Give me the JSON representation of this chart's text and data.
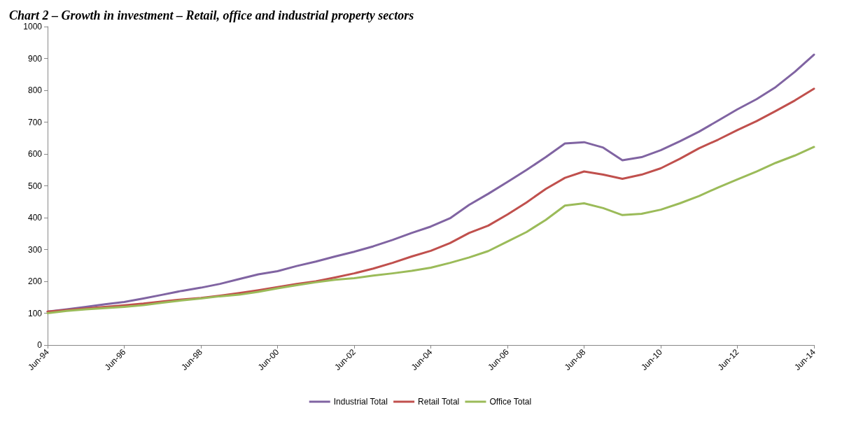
{
  "chart_data": {
    "type": "line",
    "title": "Chart 2 – Growth in investment – Retail, office and industrial property sectors",
    "categories": [
      "Jun-94",
      null,
      null,
      null,
      "Jun-96",
      null,
      null,
      null,
      "Jun-98",
      null,
      null,
      null,
      "Jun-00",
      null,
      null,
      null,
      "Jun-02",
      null,
      null,
      null,
      "Jun-04",
      null,
      null,
      null,
      "Jun-06",
      null,
      null,
      null,
      "Jun-08",
      null,
      null,
      null,
      "Jun-10",
      null,
      null,
      null,
      "Jun-12",
      null,
      null,
      null,
      "Jun-14"
    ],
    "series": [
      {
        "name": "Industrial Total",
        "color": "#8064a2",
        "values": [
          105,
          112,
          120,
          128,
          135,
          146,
          158,
          170,
          180,
          192,
          207,
          222,
          232,
          248,
          262,
          278,
          293,
          310,
          330,
          352,
          372,
          398,
          440,
          475,
          512,
          550,
          590,
          633,
          637,
          620,
          580,
          590,
          612,
          640,
          670,
          705,
          740,
          772,
          810,
          858,
          912
        ]
      },
      {
        "name": "Retail Total",
        "color": "#c0504d",
        "values": [
          105,
          110,
          115,
          120,
          125,
          130,
          137,
          143,
          148,
          155,
          163,
          172,
          182,
          192,
          200,
          212,
          225,
          240,
          258,
          278,
          296,
          320,
          352,
          375,
          410,
          448,
          490,
          525,
          545,
          535,
          522,
          535,
          555,
          585,
          618,
          645,
          675,
          703,
          735,
          768,
          805
        ]
      },
      {
        "name": "Office Total",
        "color": "#9bbb59",
        "values": [
          100,
          107,
          112,
          116,
          120,
          125,
          133,
          140,
          146,
          153,
          158,
          167,
          178,
          188,
          197,
          205,
          210,
          218,
          225,
          233,
          243,
          258,
          275,
          295,
          325,
          355,
          393,
          438,
          445,
          430,
          408,
          412,
          425,
          445,
          468,
          495,
          520,
          545,
          572,
          595,
          622
        ]
      }
    ],
    "ylim": [
      0,
      1000
    ],
    "yticks": [
      0,
      100,
      200,
      300,
      400,
      500,
      600,
      700,
      800,
      900,
      1000
    ],
    "grid": false,
    "legend": "bottom",
    "marker": "none",
    "line_style": "solid"
  }
}
